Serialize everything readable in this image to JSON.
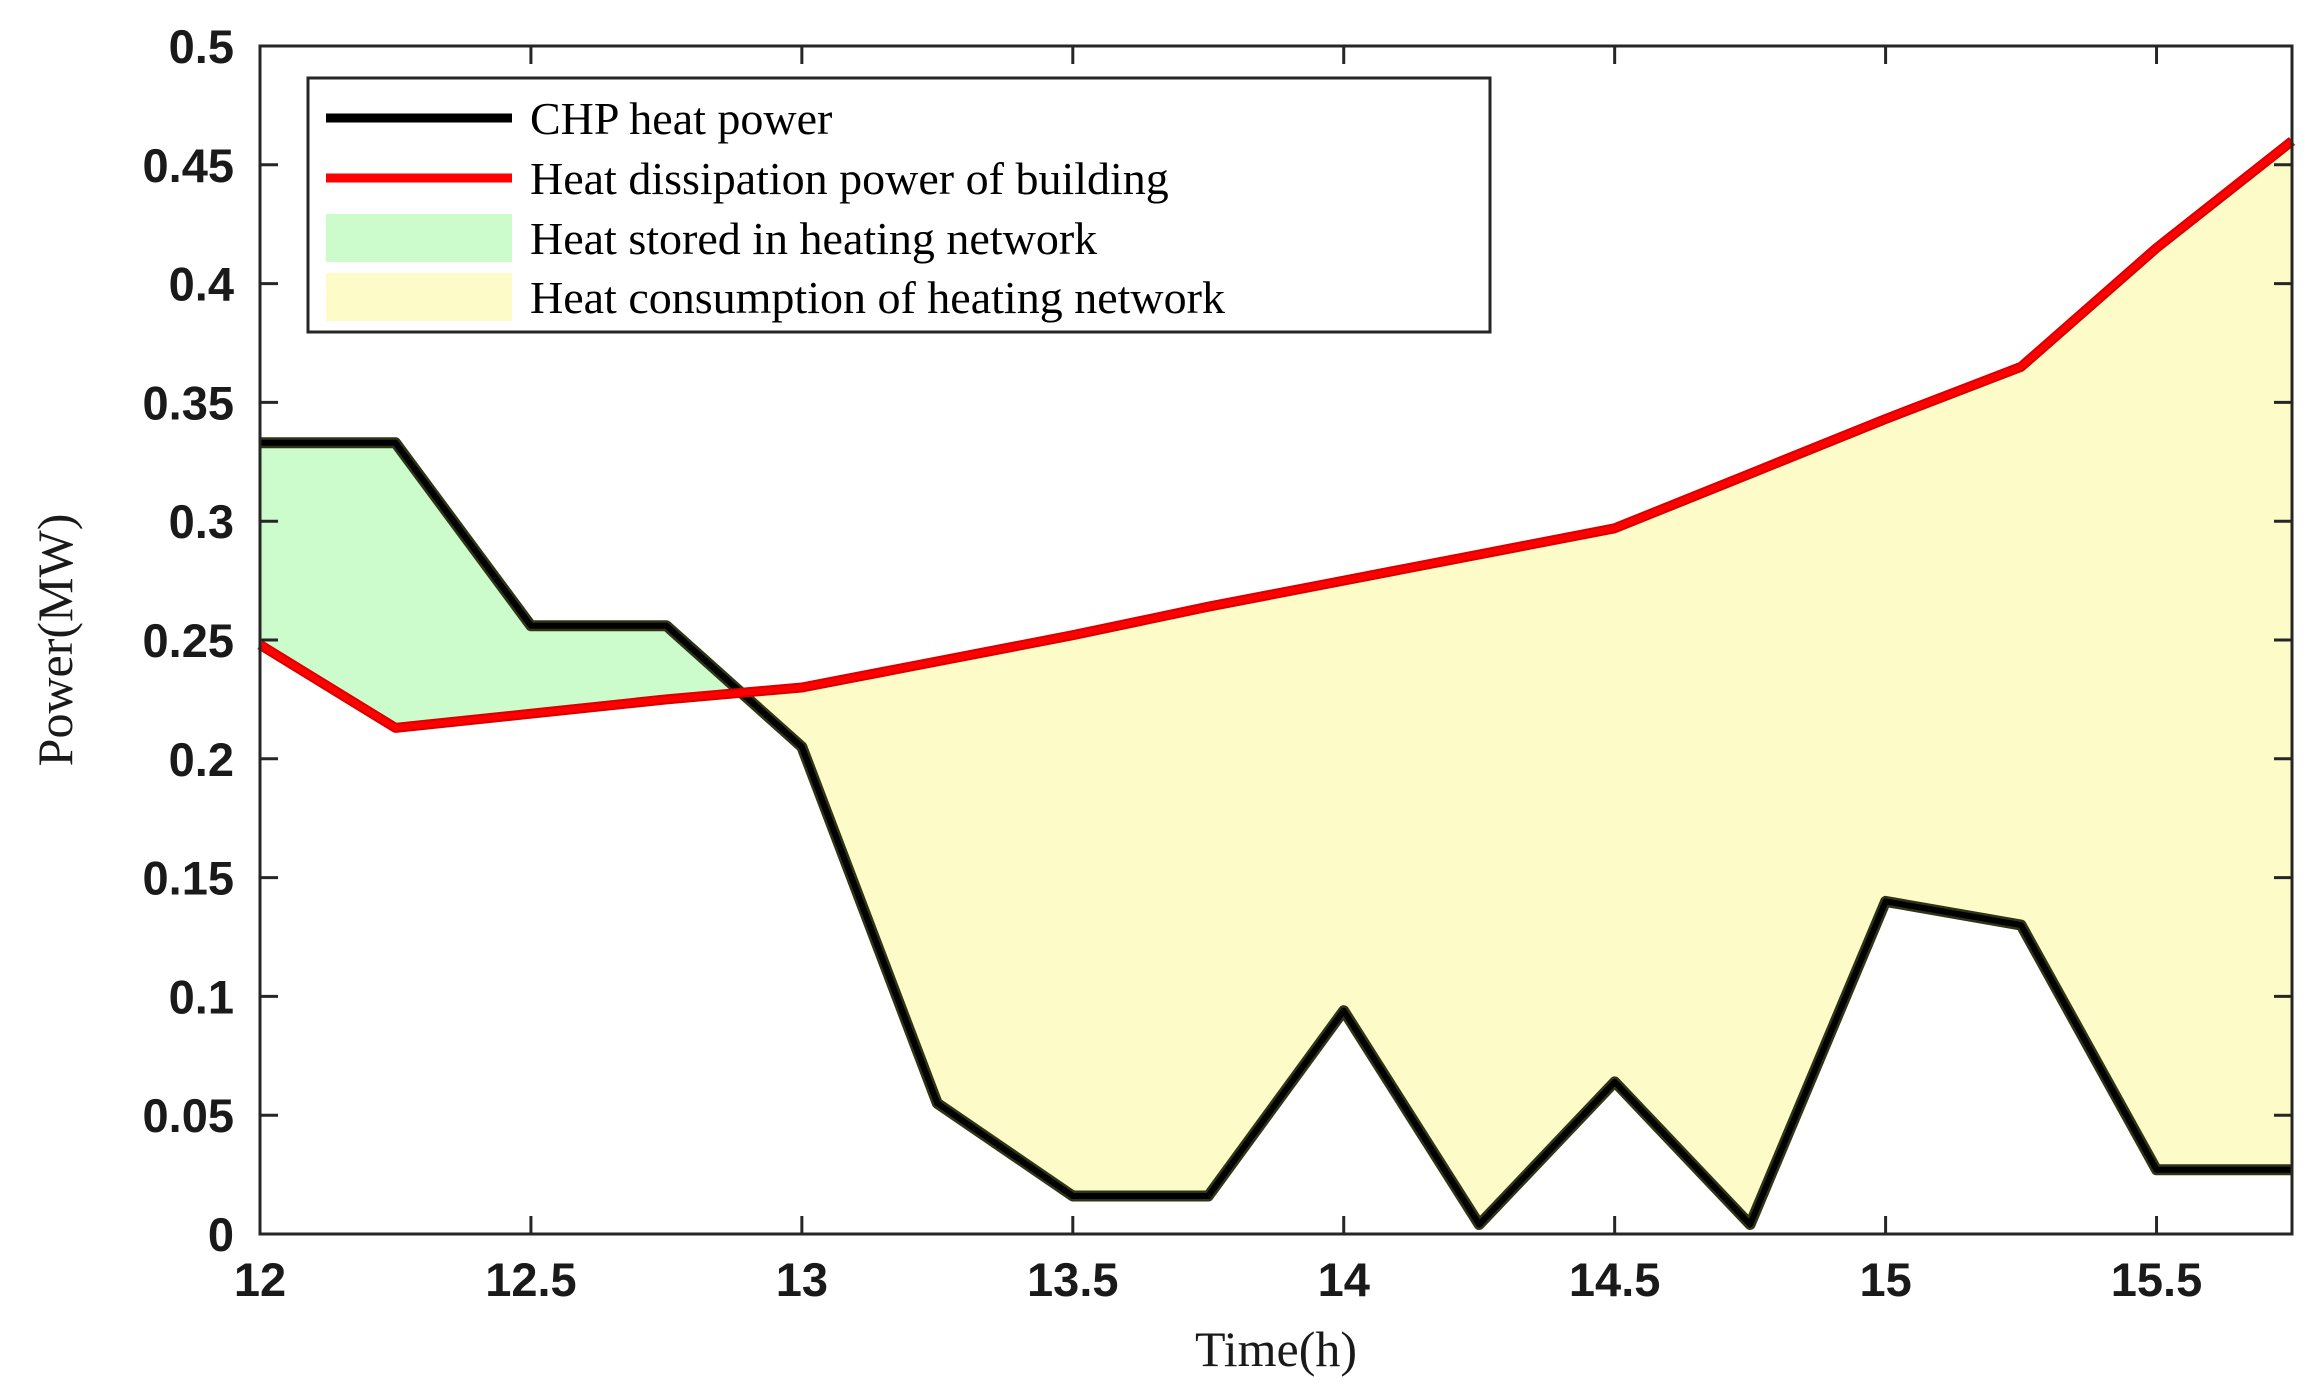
{
  "chart_data": {
    "type": "line",
    "title": "",
    "xlabel": "Time(h)",
    "ylabel": "Power(MW)",
    "xlim": [
      12,
      15.75
    ],
    "ylim": [
      0,
      0.5
    ],
    "xticks": [
      12,
      12.5,
      13,
      13.5,
      14,
      14.5,
      15,
      15.5
    ],
    "xtick_labels": [
      "12",
      "12.5",
      "13",
      "13.5",
      "14",
      "14.5",
      "15",
      "15.5"
    ],
    "yticks": [
      0,
      0.05,
      0.1,
      0.15,
      0.2,
      0.25,
      0.3,
      0.35,
      0.4,
      0.45,
      0.5
    ],
    "ytick_labels": [
      "0",
      "0.05",
      "0.1",
      "0.15",
      "0.2",
      "0.25",
      "0.3",
      "0.35",
      "0.4",
      "0.45",
      "0.5"
    ],
    "grid": false,
    "legend_position": "top-left",
    "x": [
      12,
      12.25,
      12.5,
      12.75,
      13,
      13.25,
      13.5,
      13.75,
      14,
      14.25,
      14.5,
      14.75,
      15,
      15.25,
      15.5,
      15.75
    ],
    "series": [
      {
        "name": "CHP heat power",
        "color": "#000000",
        "values": [
          0.333,
          0.333,
          0.256,
          0.256,
          0.205,
          0.055,
          0.016,
          0.016,
          0.094,
          0.004,
          0.064,
          0.004,
          0.14,
          0.13,
          0.027,
          0.027
        ]
      },
      {
        "name": "Heat dissipation power of building",
        "color": "#ff0000",
        "values": [
          0.248,
          0.213,
          0.219,
          0.225,
          0.23,
          0.241,
          0.252,
          0.264,
          0.275,
          0.286,
          0.297,
          0.32,
          0.343,
          0.365,
          0.415,
          0.46
        ]
      }
    ],
    "fill_regions": [
      {
        "name": "Heat stored in heating network",
        "color": "#ccfccc",
        "condition": "CHP heat power above heat dissipation power"
      },
      {
        "name": "Heat consumption of heating network",
        "color": "#fdfcc9",
        "condition": "heat dissipation power above CHP heat power"
      }
    ],
    "legend": [
      "CHP heat power",
      "Heat dissipation power of building",
      "Heat stored in heating network",
      "Heat consumption of heating network"
    ]
  }
}
